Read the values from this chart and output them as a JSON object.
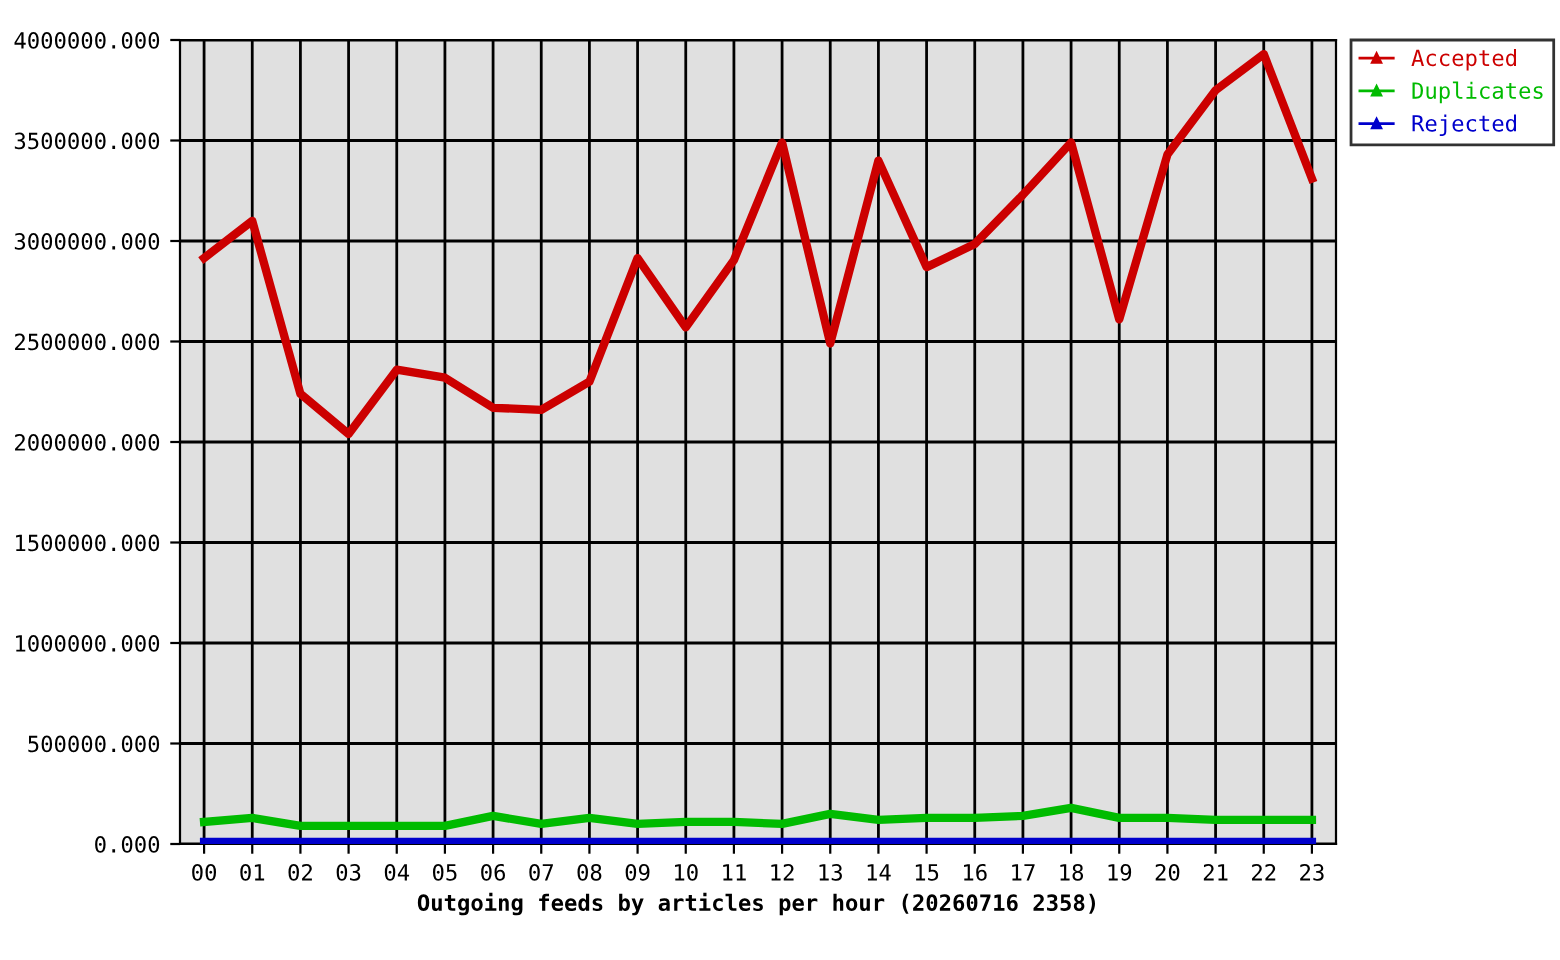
{
  "chart_data": {
    "type": "line",
    "title": "Outgoing feeds by articles per hour (20260716 2358)",
    "categories": [
      "00",
      "01",
      "02",
      "03",
      "04",
      "05",
      "06",
      "07",
      "08",
      "09",
      "10",
      "11",
      "12",
      "13",
      "14",
      "15",
      "16",
      "17",
      "18",
      "19",
      "20",
      "21",
      "22",
      "23"
    ],
    "series": [
      {
        "name": "Accepted",
        "color": "#cc0000",
        "values": [
          2915000,
          3100000,
          2240000,
          2040000,
          2360000,
          2320000,
          2170000,
          2160000,
          2300000,
          2915000,
          2570000,
          2905000,
          3490000,
          2490000,
          3400000,
          2870000,
          2985000,
          3230000,
          3490000,
          2610000,
          3430000,
          3750000,
          3930000,
          3310000
        ]
      },
      {
        "name": "Duplicates",
        "color": "#00bb00",
        "values": [
          110000,
          130000,
          90000,
          90000,
          90000,
          90000,
          140000,
          100000,
          130000,
          100000,
          110000,
          110000,
          100000,
          150000,
          120000,
          130000,
          130000,
          140000,
          180000,
          130000,
          130000,
          120000,
          120000,
          120000
        ]
      },
      {
        "name": "Rejected",
        "color": "#0000cc",
        "values": [
          10000,
          10000,
          10000,
          10000,
          10000,
          10000,
          10000,
          10000,
          10000,
          10000,
          10000,
          10000,
          10000,
          10000,
          10000,
          10000,
          10000,
          10000,
          10000,
          10000,
          10000,
          10000,
          10000,
          10000
        ]
      }
    ],
    "ylim": [
      0,
      4000000
    ],
    "yticks": [
      {
        "value": 0,
        "label": "0.000"
      },
      {
        "value": 500000,
        "label": "500000.000"
      },
      {
        "value": 1000000,
        "label": "1000000.000"
      },
      {
        "value": 1500000,
        "label": "1500000.000"
      },
      {
        "value": 2000000,
        "label": "2000000.000"
      },
      {
        "value": 2500000,
        "label": "2500000.000"
      },
      {
        "value": 3000000,
        "label": "3000000.000"
      },
      {
        "value": 3500000,
        "label": "3500000.000"
      },
      {
        "value": 4000000,
        "label": "4000000.000"
      }
    ],
    "grid": true,
    "legend": "top right",
    "marker": "none",
    "line_style": "solid"
  }
}
